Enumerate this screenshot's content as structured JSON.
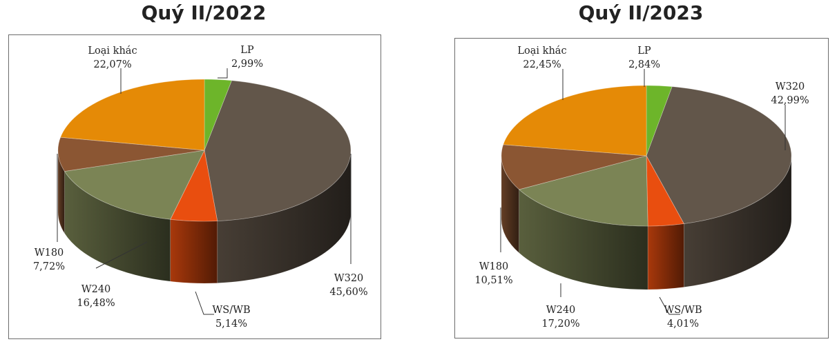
{
  "chart_data": [
    {
      "type": "pie",
      "title": "Quý II/2022",
      "labels": [
        "LP",
        "W320",
        "WS/WB",
        "W240",
        "W180",
        "Loại khác"
      ],
      "values": [
        2.99,
        45.6,
        5.14,
        16.48,
        7.72,
        22.07
      ],
      "value_labels": [
        "2,99%",
        "45,60%",
        "5,14%",
        "16,48%",
        "7,72%",
        "22,07%"
      ],
      "colors": [
        "#6db52a",
        "#62564a",
        "#e94e0f",
        "#7b8455",
        "#8b5633",
        "#e58a06"
      ]
    },
    {
      "type": "pie",
      "title": "Quý II/2023",
      "labels": [
        "LP",
        "W320",
        "WS/WB",
        "W240",
        "W180",
        "Loại khác"
      ],
      "values": [
        2.84,
        42.99,
        4.01,
        17.2,
        10.51,
        22.45
      ],
      "value_labels": [
        "2,84%",
        "42,99%",
        "4,01%",
        "17,20%",
        "10,51%",
        "22,45%"
      ],
      "colors": [
        "#6db52a",
        "#62564a",
        "#e94e0f",
        "#7b8455",
        "#8b5633",
        "#e58a06"
      ]
    }
  ]
}
